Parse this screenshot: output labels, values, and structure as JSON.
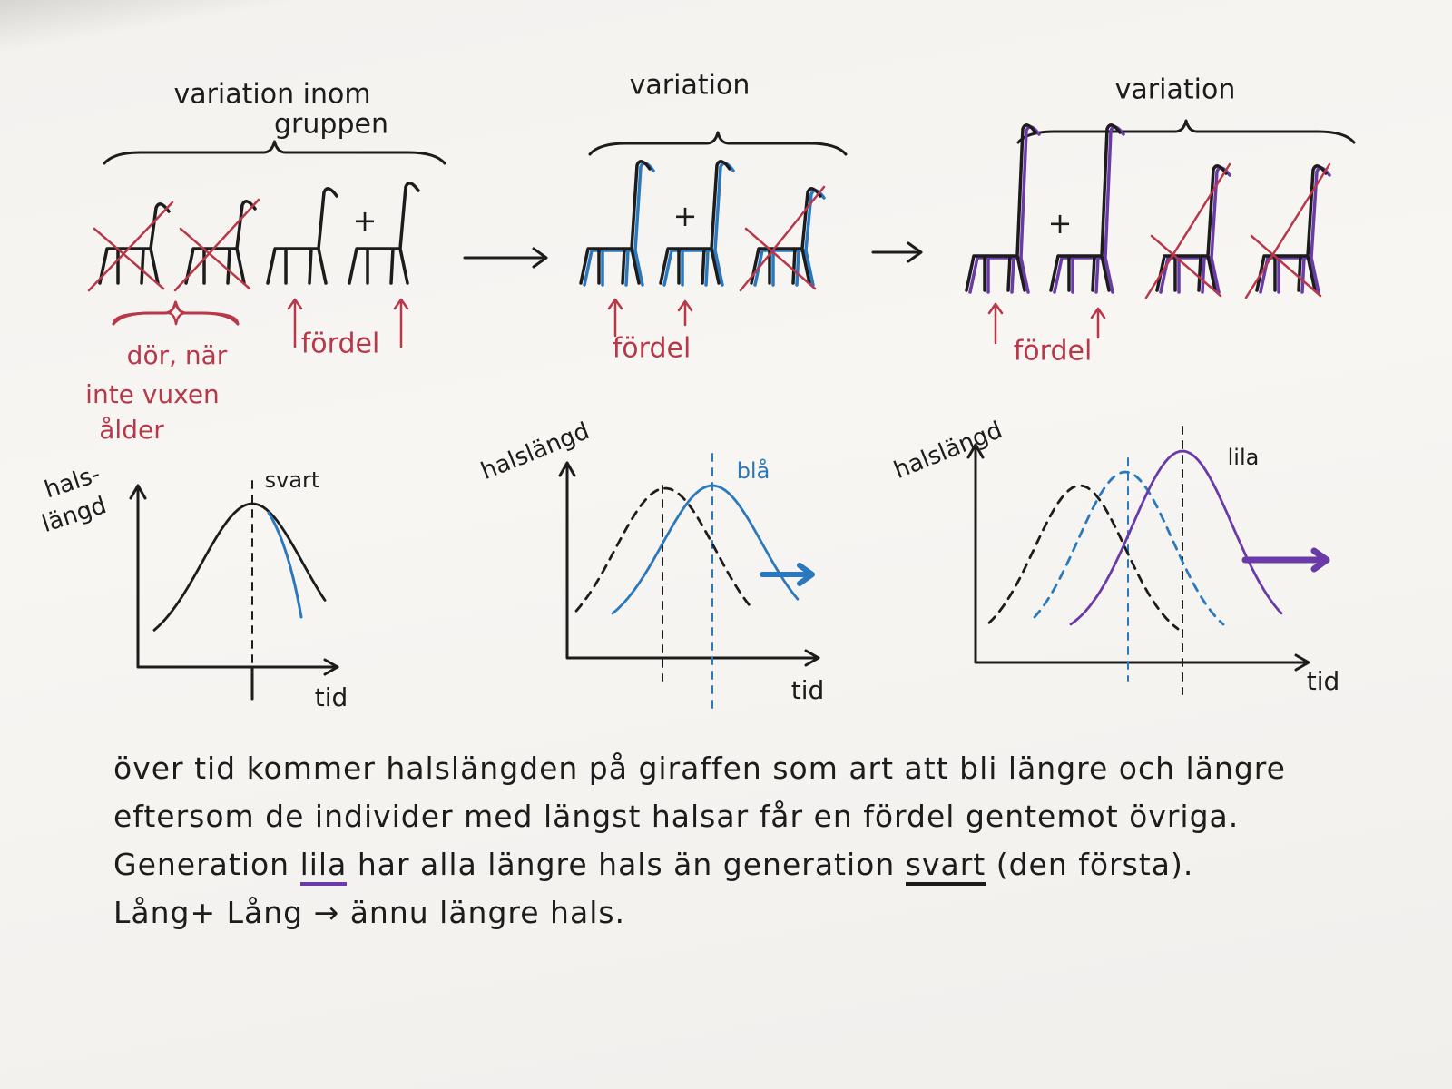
{
  "stages": [
    {
      "heading": [
        "variation inom",
        "gruppen"
      ],
      "death_note": [
        "dör, när",
        "inte vuxen",
        "ålder"
      ],
      "advantage": "fördel"
    },
    {
      "heading": [
        "variation"
      ],
      "advantage": "fördel"
    },
    {
      "heading": [
        "variation"
      ],
      "advantage": "fördel"
    }
  ],
  "plus_sign": "+",
  "graphs": [
    {
      "y_label": [
        "hals-",
        "längd"
      ],
      "x_label": "tid",
      "curve_label": "svart"
    },
    {
      "y_label": [
        "halslängd"
      ],
      "x_label": "tid",
      "curve_label": "blå"
    },
    {
      "y_label": [
        "halslängd"
      ],
      "x_label": "tid",
      "curve_label": "lila"
    }
  ],
  "text_lines": [
    [
      "över tid kommer halslängden på giraffen som art att bli längre och längre"
    ],
    [
      "eftersom de individer med längst halsar får en fördel gentemot övriga."
    ],
    [
      "Generation ",
      "lila",
      " har alla längre hals än generation ",
      "svart",
      " (den första)."
    ],
    [
      "Lång+ Lång → ännu längre hals."
    ]
  ]
}
